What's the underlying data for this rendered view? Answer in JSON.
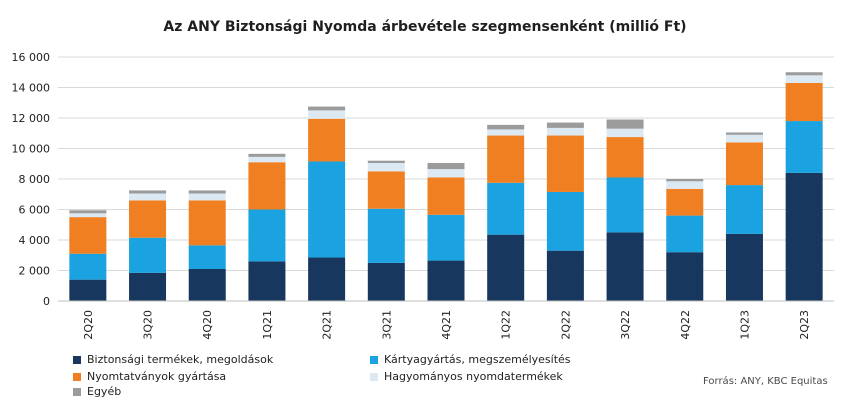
{
  "chart_data": {
    "type": "bar",
    "stacked": true,
    "title": "Az ANY Biztonsági Nyomda árbevétele szegmensenként (millió Ft)",
    "categories": [
      "2Q20",
      "3Q20",
      "4Q20",
      "1Q21",
      "2Q21",
      "3Q21",
      "4Q21",
      "1Q22",
      "2Q22",
      "3Q22",
      "4Q22",
      "1Q23",
      "2Q23"
    ],
    "ylim": [
      0,
      16000
    ],
    "yticks": [
      0,
      2000,
      4000,
      6000,
      8000,
      10000,
      12000,
      14000,
      16000
    ],
    "ytick_labels": [
      "0",
      "2 000",
      "4 000",
      "6 000",
      "8 000",
      "10 000",
      "12 000",
      "14 000",
      "16 000"
    ],
    "grid": true,
    "legend_position": "bottom",
    "series": [
      {
        "name": "Biztonsági termékek, megoldások",
        "color": "#17375e",
        "values": [
          1400,
          1850,
          2100,
          2600,
          2850,
          2500,
          2650,
          4350,
          3300,
          4500,
          3200,
          4400,
          8400
        ]
      },
      {
        "name": "Kártyagyártás, megszemélyesítés",
        "color": "#1aa3e0",
        "values": [
          1700,
          2300,
          1550,
          3400,
          6300,
          3550,
          3000,
          3400,
          3850,
          3600,
          2400,
          3200,
          3400
        ]
      },
      {
        "name": "Nyomtatványok gyártása",
        "color": "#f07f21",
        "values": [
          2400,
          2450,
          2950,
          3100,
          2800,
          2450,
          2450,
          3100,
          3700,
          2650,
          1750,
          2800,
          2500
        ]
      },
      {
        "name": "Hagyományos nyomdatermékek",
        "color": "#dce9f3",
        "values": [
          250,
          450,
          450,
          350,
          550,
          550,
          550,
          400,
          500,
          550,
          500,
          500,
          500
        ]
      },
      {
        "name": "Egyéb",
        "color": "#9b9b9b",
        "values": [
          200,
          200,
          200,
          200,
          250,
          150,
          400,
          300,
          350,
          600,
          150,
          150,
          200
        ]
      }
    ]
  },
  "source": "Forrás: ANY, KBC Equitas"
}
